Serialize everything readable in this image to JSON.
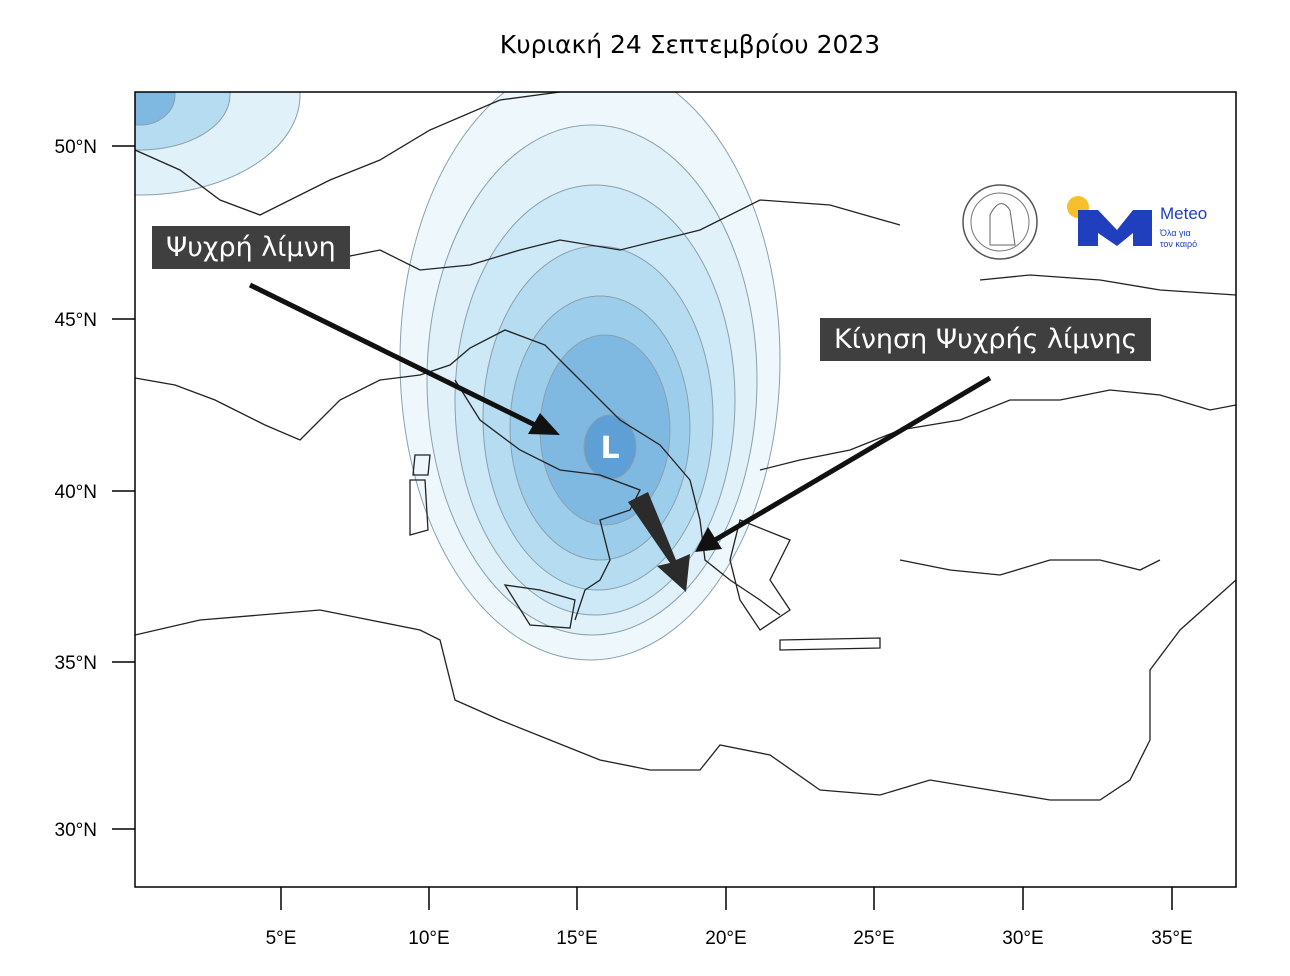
{
  "title": "Κυριακή 24 Σεπτεμβρίου 2023",
  "labels": {
    "low_label": "Ψυχρή λίμνη",
    "movement_label": "Κίνηση Ψυχρής λίμνης",
    "center_marker": "L"
  },
  "axes": {
    "lat_ticks": [
      "50°N",
      "45°N",
      "40°N",
      "35°N",
      "30°N"
    ],
    "lon_ticks": [
      "5°E",
      "10°E",
      "15°E",
      "20°E",
      "25°E",
      "30°E",
      "35°E"
    ]
  },
  "logos": {
    "meteo_name": "Meteo",
    "meteo_tagline_1": "Όλα για",
    "meteo_tagline_2": "τον καιρό",
    "observatory_seal": "National Observatory of Athens"
  },
  "colors": {
    "contour_levels": [
      "#eef8fc",
      "#e0f1f9",
      "#cde8f6",
      "#b5dcf1",
      "#9ccdeb",
      "#7fb9e2",
      "#5e9fd6"
    ],
    "label_bg": "#3f3f3f",
    "meteo_blue": "#1f3fbf",
    "meteo_sun": "#f5c02a"
  }
}
